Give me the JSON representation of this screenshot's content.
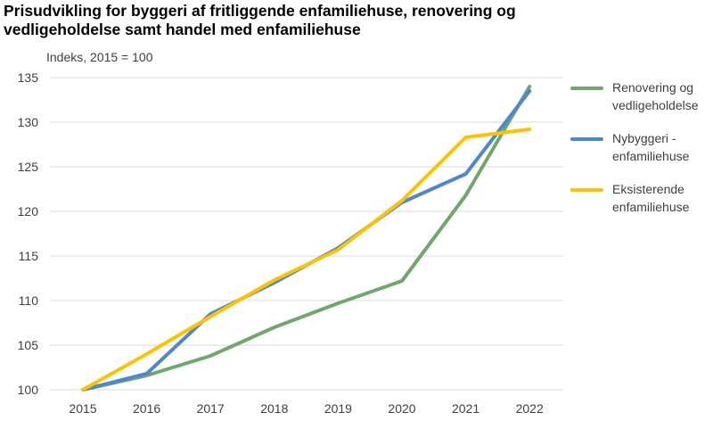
{
  "title_lines": [
    "Prisudvikling for byggeri af fritliggende enfamiliehuse, renovering og",
    "vedligeholdelse samt handel med enfamiliehuse"
  ],
  "colors": {
    "renovering": "#70a86b",
    "nybyggeri": "#4f87cf",
    "eksisterende": "#fdc200",
    "grid": "#d9d9d9",
    "axis_text": "#404040"
  },
  "legend": [
    {
      "label": "Renovering og vedligeholdelse",
      "color_key": "renovering"
    },
    {
      "label": "Nybyggeri - enfamiliehuse",
      "color_key": "nybyggeri"
    },
    {
      "label": "Eksisterende enfamiliehuse",
      "color_key": "eksisterende"
    }
  ],
  "chart_data": {
    "type": "line",
    "title": "Prisudvikling for byggeri af fritliggende enfamiliehuse, renovering og vedligeholdelse samt handel med enfamiliehuse",
    "ylabel": "Indeks, 2015 = 100",
    "xlabel": "",
    "x": [
      "2015",
      "2016",
      "2017",
      "2018",
      "2019",
      "2020",
      "2021",
      "2022"
    ],
    "ylim": [
      100,
      135
    ],
    "yticks": [
      100,
      105,
      110,
      115,
      120,
      125,
      130,
      135
    ],
    "grid": true,
    "legend_position": "right",
    "series": [
      {
        "name": "Renovering og vedligeholdelse",
        "color_key": "renovering",
        "values": [
          100,
          101.6,
          103.8,
          107,
          109.7,
          112.2,
          121.8,
          134
        ]
      },
      {
        "name": "Nybyggeri - enfamiliehuse",
        "color_key": "nybyggeri",
        "values": [
          100,
          101.8,
          108.5,
          112,
          115.9,
          121,
          124.2,
          133.5
        ]
      },
      {
        "name": "Eksisterende enfamiliehuse",
        "color_key": "eksisterende",
        "values": [
          100,
          104,
          108.2,
          112.3,
          115.7,
          121.2,
          128.3,
          129.2
        ]
      }
    ]
  }
}
